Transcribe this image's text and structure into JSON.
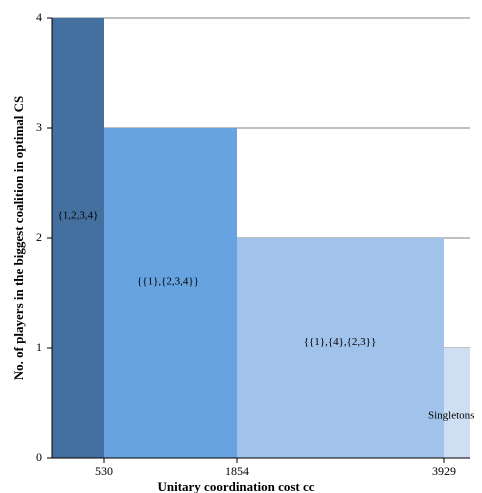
{
  "chart_data": {
    "type": "bar",
    "title": "",
    "xlabel": "Unitary coordination cost cc",
    "ylabel": "No. of players in the biggest coalition in optimal CS",
    "x_ticks": [
      "530",
      "1854",
      "3929"
    ],
    "y_ticks": [
      "0",
      "1",
      "2",
      "3",
      "4"
    ],
    "ylim": [
      0,
      4
    ],
    "grid": "horizontal",
    "legend": "none",
    "regions": [
      {
        "label": "{1,2,3,4}",
        "from": 0,
        "to": 530,
        "value": 4,
        "color": "#44709f"
      },
      {
        "label": "{{1},{2,3,4}}",
        "from": 530,
        "to": 1854,
        "value": 3,
        "color": "#67a3e0"
      },
      {
        "label": "{{1},{4},{2,3}}",
        "from": 1854,
        "to": 3929,
        "value": 2,
        "color": "#a1c2ea"
      },
      {
        "label": "Singletons",
        "from": 3929,
        "to": 4200,
        "value": 1,
        "color": "#cfdff3"
      }
    ]
  }
}
